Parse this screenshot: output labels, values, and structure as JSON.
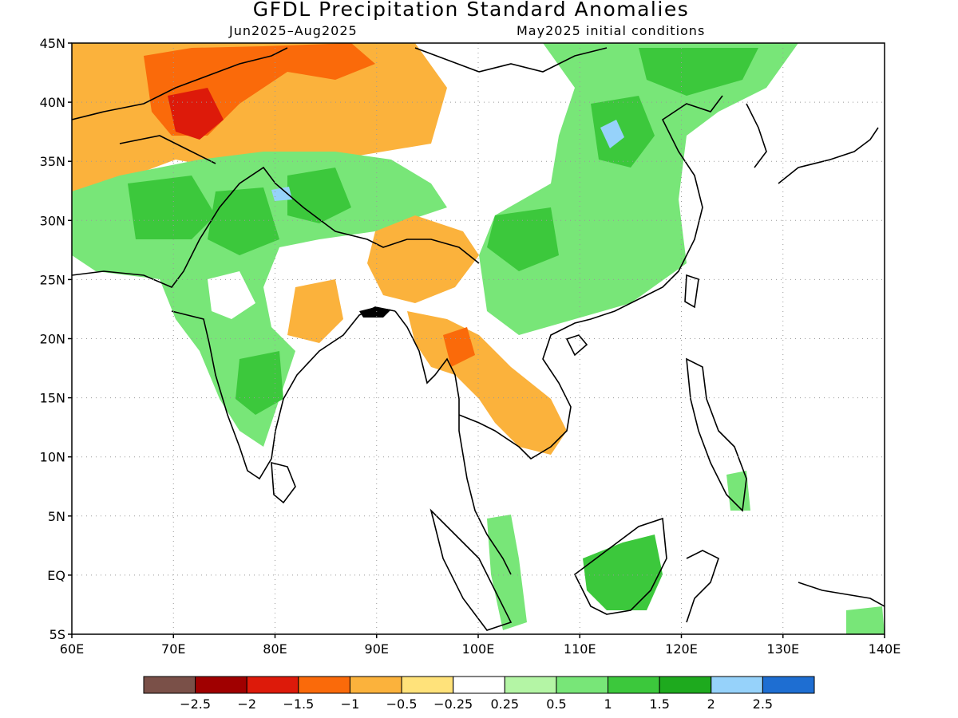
{
  "title": "GFDL Precipitation Standard Anomalies",
  "subtitle_left": "Jun2025–Aug2025",
  "subtitle_right": "May2025 initial conditions",
  "map": {
    "lat_range": [
      -5,
      45
    ],
    "lon_range": [
      60,
      140
    ],
    "lat_ticks": [
      "45N",
      "40N",
      "35N",
      "30N",
      "25N",
      "20N",
      "15N",
      "10N",
      "5N",
      "EQ",
      "5S"
    ],
    "lon_ticks": [
      "60E",
      "70E",
      "80E",
      "90E",
      "100E",
      "110E",
      "120E",
      "130E",
      "140E"
    ],
    "grid": true
  },
  "colorbar": {
    "colors": [
      "#7a5048",
      "#a00000",
      "#dd1a0a",
      "#fa6a0a",
      "#fbb23c",
      "#ffe27a",
      "#ffffff",
      "#b4f5a5",
      "#78e678",
      "#3cc83c",
      "#1eaa1e",
      "#96d2fa",
      "#1e6ed2"
    ],
    "labels": [
      "−2.5",
      "−2",
      "−1.5",
      "−1",
      "−0.5",
      "−0.25",
      "0.25",
      "0.5",
      "1",
      "1.5",
      "2",
      "2.5"
    ]
  }
}
